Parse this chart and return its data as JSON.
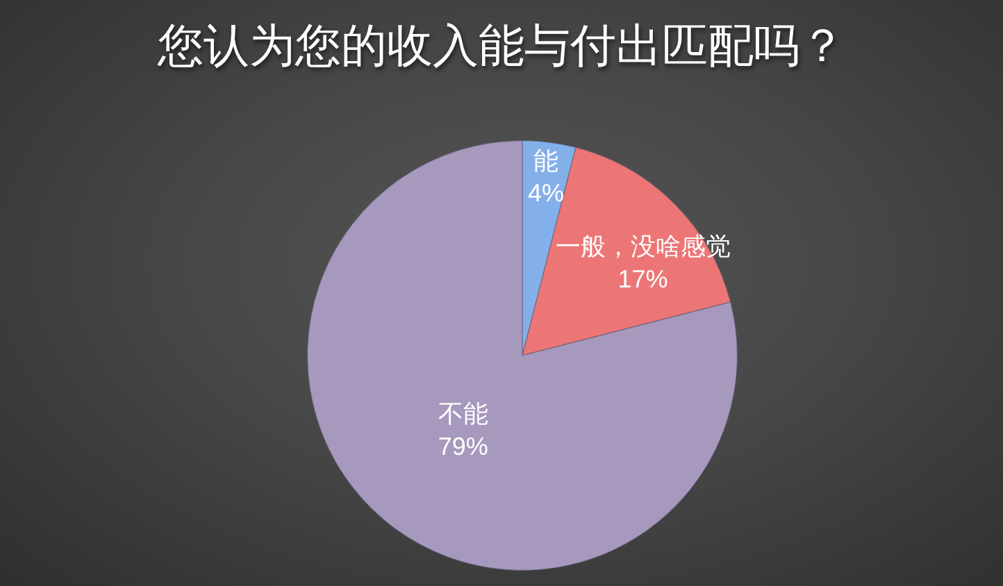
{
  "chart_data": {
    "type": "pie",
    "title": "您认为您的收入能与付出匹配吗？",
    "categories": [
      "能",
      "一般，没啥感觉",
      "不能"
    ],
    "values": [
      4,
      17,
      79
    ],
    "colors": [
      "#84b0ea",
      "#ec7676",
      "#a798bd"
    ],
    "value_labels": [
      "4%",
      "17%",
      "79%"
    ],
    "legend": false
  }
}
